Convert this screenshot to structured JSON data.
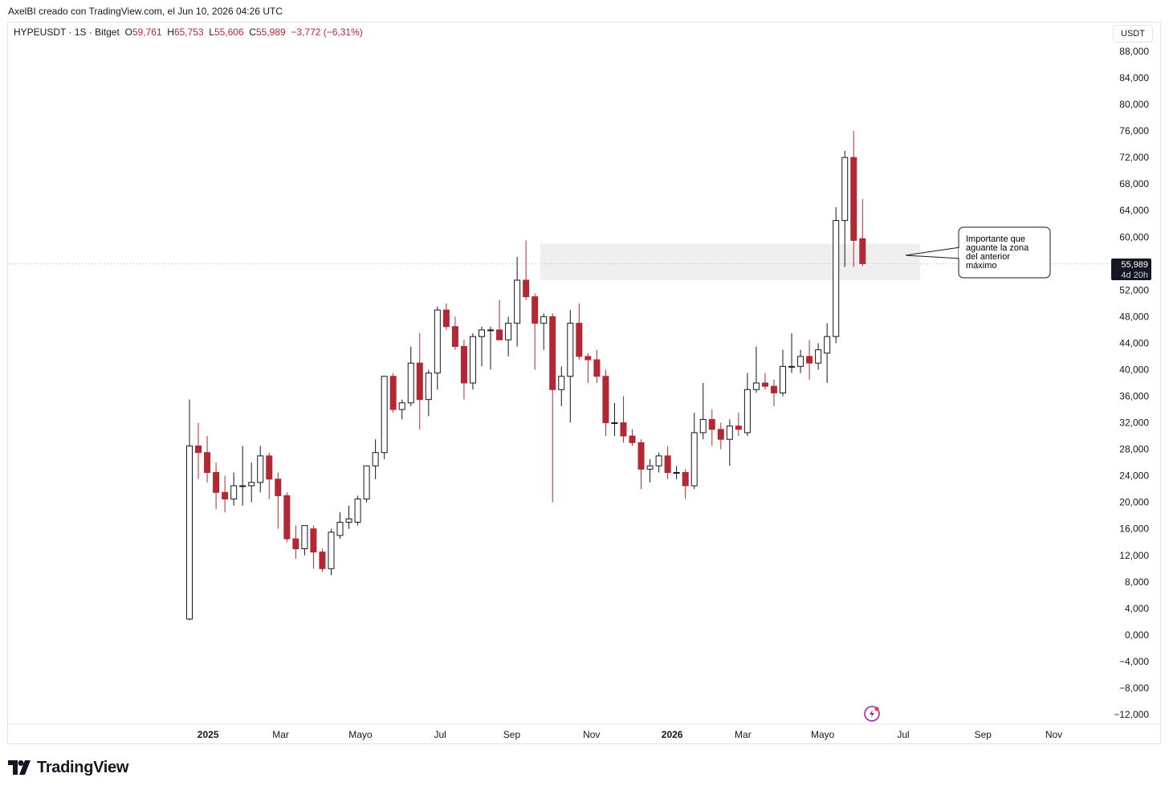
{
  "credit": "AxelBI creado con TradingView.com, el Jun 10, 2026 04:26 UTC",
  "legend": {
    "symbol": "HYPEUSDT · 1S · Bitget",
    "o_label": "O",
    "o_value": "59,761",
    "h_label": "H",
    "h_value": "65,753",
    "l_label": "L",
    "l_value": "55,606",
    "c_label": "C",
    "c_value": "55,989",
    "change": "−3,772 (−6,31%)"
  },
  "currency": "USDT",
  "branding": "TradingView",
  "annotation": {
    "lines": [
      "Importante que",
      "aguante la zona",
      "del anterior",
      "máximo"
    ]
  },
  "last_price": {
    "label": "55,989",
    "countdown": "4d 20h"
  },
  "colors": {
    "up_fill": "#ffffff",
    "up_border": "#131722",
    "down": "#b22833",
    "zone": "#efefef",
    "price_line": "#b0b0b0"
  },
  "chart_data": {
    "type": "candlestick",
    "interval": "weekly",
    "ylim": [
      -12000,
      88000
    ],
    "y_ticks": [
      "88,000",
      "84,000",
      "80,000",
      "76,000",
      "72,000",
      "68,000",
      "64,000",
      "60,000",
      "52,000",
      "48,000",
      "44,000",
      "40,000",
      "36,000",
      "32,000",
      "28,000",
      "24,000",
      "20,000",
      "16,000",
      "12,000",
      "8,000",
      "4,000",
      "0,000",
      "−4,000",
      "−8,000",
      "−12,000"
    ],
    "x_ticks": [
      {
        "label": "2025",
        "bold": true,
        "week": 2.1
      },
      {
        "label": "Mar",
        "bold": false,
        "week": 10.3
      },
      {
        "label": "Mayo",
        "bold": false,
        "week": 19.3
      },
      {
        "label": "Jul",
        "bold": false,
        "week": 28.3
      },
      {
        "label": "Sep",
        "bold": false,
        "week": 36.4
      },
      {
        "label": "Nov",
        "bold": false,
        "week": 45.4
      },
      {
        "label": "2026",
        "bold": true,
        "week": 54.5
      },
      {
        "label": "Mar",
        "bold": false,
        "week": 62.5
      },
      {
        "label": "Mayo",
        "bold": false,
        "week": 71.5
      },
      {
        "label": "Jul",
        "bold": false,
        "week": 80.6
      },
      {
        "label": "Sep",
        "bold": false,
        "week": 89.6
      },
      {
        "label": "Nov",
        "bold": false,
        "week": 97.6
      }
    ],
    "zone": {
      "from_week": 39.6,
      "to_week": 82.5,
      "low": 53500,
      "high": 59000
    },
    "candles": [
      {
        "o": 2400,
        "h": 35500,
        "l": 2200,
        "c": 28500
      },
      {
        "o": 28500,
        "h": 32000,
        "l": 23500,
        "c": 27500
      },
      {
        "o": 27500,
        "h": 30000,
        "l": 23000,
        "c": 24500
      },
      {
        "o": 24500,
        "h": 26000,
        "l": 19000,
        "c": 21500
      },
      {
        "o": 21500,
        "h": 24000,
        "l": 18500,
        "c": 20500
      },
      {
        "o": 20500,
        "h": 24500,
        "l": 19500,
        "c": 22500
      },
      {
        "o": 22500,
        "h": 28500,
        "l": 19500,
        "c": 22500
      },
      {
        "o": 22500,
        "h": 26000,
        "l": 20000,
        "c": 23000
      },
      {
        "o": 23000,
        "h": 28500,
        "l": 21500,
        "c": 27000
      },
      {
        "o": 27000,
        "h": 27500,
        "l": 20500,
        "c": 23500
      },
      {
        "o": 23500,
        "h": 24500,
        "l": 16000,
        "c": 21000
      },
      {
        "o": 21000,
        "h": 21500,
        "l": 14000,
        "c": 14500
      },
      {
        "o": 14500,
        "h": 16500,
        "l": 11500,
        "c": 13000
      },
      {
        "o": 13000,
        "h": 16500,
        "l": 12000,
        "c": 16500
      },
      {
        "o": 16000,
        "h": 16500,
        "l": 10000,
        "c": 12500
      },
      {
        "o": 12500,
        "h": 13000,
        "l": 9500,
        "c": 10000
      },
      {
        "o": 10000,
        "h": 16000,
        "l": 9000,
        "c": 15500
      },
      {
        "o": 15000,
        "h": 18500,
        "l": 14500,
        "c": 17000
      },
      {
        "o": 17000,
        "h": 19500,
        "l": 16000,
        "c": 17500
      },
      {
        "o": 17000,
        "h": 21000,
        "l": 16500,
        "c": 20500
      },
      {
        "o": 20500,
        "h": 25500,
        "l": 20000,
        "c": 25500
      },
      {
        "o": 25500,
        "h": 29500,
        "l": 23500,
        "c": 27500
      },
      {
        "o": 27500,
        "h": 39000,
        "l": 26500,
        "c": 39000
      },
      {
        "o": 39000,
        "h": 39500,
        "l": 33500,
        "c": 34000
      },
      {
        "o": 34000,
        "h": 35500,
        "l": 32500,
        "c": 35000
      },
      {
        "o": 35000,
        "h": 43500,
        "l": 34500,
        "c": 41000
      },
      {
        "o": 41000,
        "h": 45500,
        "l": 31000,
        "c": 35500
      },
      {
        "o": 35500,
        "h": 40000,
        "l": 33000,
        "c": 39500
      },
      {
        "o": 39500,
        "h": 49500,
        "l": 37000,
        "c": 49000
      },
      {
        "o": 49000,
        "h": 50000,
        "l": 46000,
        "c": 46500
      },
      {
        "o": 46500,
        "h": 48000,
        "l": 43000,
        "c": 43500
      },
      {
        "o": 43500,
        "h": 44500,
        "l": 35500,
        "c": 38000
      },
      {
        "o": 38000,
        "h": 45500,
        "l": 37000,
        "c": 45000
      },
      {
        "o": 45000,
        "h": 46500,
        "l": 40500,
        "c": 46000
      },
      {
        "o": 46000,
        "h": 46500,
        "l": 40000,
        "c": 46000
      },
      {
        "o": 46000,
        "h": 50500,
        "l": 44500,
        "c": 44500
      },
      {
        "o": 44500,
        "h": 48000,
        "l": 42000,
        "c": 47000
      },
      {
        "o": 47000,
        "h": 57000,
        "l": 43500,
        "c": 53500
      },
      {
        "o": 53500,
        "h": 59500,
        "l": 50500,
        "c": 51000
      },
      {
        "o": 51000,
        "h": 51500,
        "l": 40000,
        "c": 47000
      },
      {
        "o": 47000,
        "h": 48500,
        "l": 43000,
        "c": 48000
      },
      {
        "o": 48000,
        "h": 48500,
        "l": 20000,
        "c": 37000
      },
      {
        "o": 37000,
        "h": 40500,
        "l": 34500,
        "c": 39000
      },
      {
        "o": 39000,
        "h": 49000,
        "l": 32000,
        "c": 47000
      },
      {
        "o": 47000,
        "h": 50000,
        "l": 41500,
        "c": 42000
      },
      {
        "o": 42000,
        "h": 42500,
        "l": 38000,
        "c": 41500
      },
      {
        "o": 41500,
        "h": 43000,
        "l": 38000,
        "c": 39000
      },
      {
        "o": 39000,
        "h": 40000,
        "l": 30000,
        "c": 32000
      },
      {
        "o": 32000,
        "h": 35000,
        "l": 30000,
        "c": 32000
      },
      {
        "o": 32000,
        "h": 36000,
        "l": 29000,
        "c": 30000
      },
      {
        "o": 30000,
        "h": 31000,
        "l": 28500,
        "c": 29000
      },
      {
        "o": 29000,
        "h": 29500,
        "l": 22000,
        "c": 25000
      },
      {
        "o": 25000,
        "h": 26500,
        "l": 23000,
        "c": 25500
      },
      {
        "o": 25500,
        "h": 27500,
        "l": 24500,
        "c": 27000
      },
      {
        "o": 27000,
        "h": 28500,
        "l": 23500,
        "c": 24500
      },
      {
        "o": 24500,
        "h": 25500,
        "l": 23500,
        "c": 24500
      },
      {
        "o": 24500,
        "h": 25000,
        "l": 20500,
        "c": 22500
      },
      {
        "o": 22500,
        "h": 33500,
        "l": 22000,
        "c": 30500
      },
      {
        "o": 30500,
        "h": 38000,
        "l": 29500,
        "c": 32500
      },
      {
        "o": 32500,
        "h": 34000,
        "l": 28500,
        "c": 31000
      },
      {
        "o": 31000,
        "h": 32000,
        "l": 28000,
        "c": 29500
      },
      {
        "o": 29500,
        "h": 32500,
        "l": 25500,
        "c": 31500
      },
      {
        "o": 31500,
        "h": 33500,
        "l": 30000,
        "c": 31000
      },
      {
        "o": 30500,
        "h": 39500,
        "l": 30000,
        "c": 37000
      },
      {
        "o": 37000,
        "h": 43500,
        "l": 36500,
        "c": 38000
      },
      {
        "o": 38000,
        "h": 39500,
        "l": 37000,
        "c": 37500
      },
      {
        "o": 37500,
        "h": 38500,
        "l": 34500,
        "c": 36500
      },
      {
        "o": 36500,
        "h": 43000,
        "l": 36000,
        "c": 40500
      },
      {
        "o": 40500,
        "h": 45500,
        "l": 39500,
        "c": 40500
      },
      {
        "o": 40500,
        "h": 43000,
        "l": 39500,
        "c": 42000
      },
      {
        "o": 42000,
        "h": 44500,
        "l": 38500,
        "c": 41000
      },
      {
        "o": 41000,
        "h": 44000,
        "l": 40000,
        "c": 43000
      },
      {
        "o": 42500,
        "h": 47000,
        "l": 38000,
        "c": 45000
      },
      {
        "o": 45000,
        "h": 64500,
        "l": 44000,
        "c": 62500
      },
      {
        "o": 62500,
        "h": 73000,
        "l": 55500,
        "c": 72000
      },
      {
        "o": 72000,
        "h": 76000,
        "l": 55500,
        "c": 59500
      },
      {
        "o": 59761,
        "h": 65753,
        "l": 55606,
        "c": 55989
      }
    ]
  }
}
